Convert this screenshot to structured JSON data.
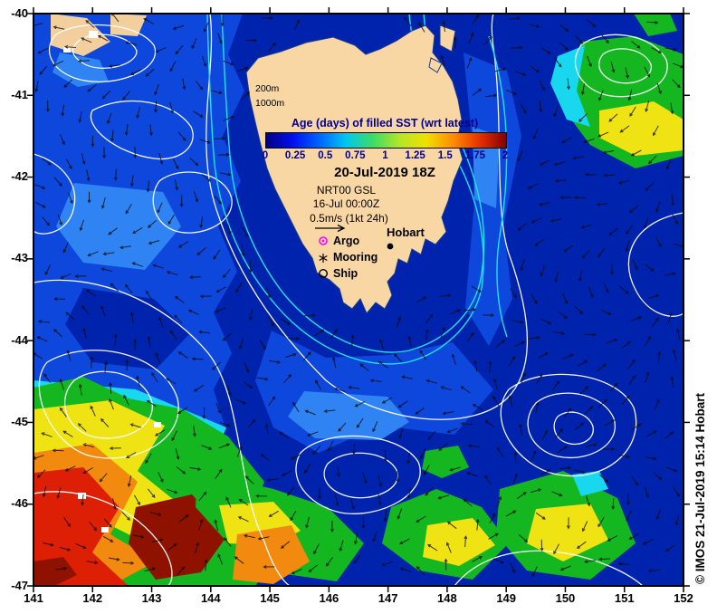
{
  "map": {
    "colorbar": {
      "title": "Age (days) of filled SST (wrt latest)",
      "tick_labels": [
        "0",
        "0.25",
        "0.5",
        "0.75",
        "1",
        "1.25",
        "1.5",
        "1.75",
        "2"
      ],
      "gradient_colors": [
        "#000082",
        "#0010F0",
        "#0064FF",
        "#00C8F0",
        "#3CDC64",
        "#B4E628",
        "#F0E000",
        "#FF8C00",
        "#E63200",
        "#820000"
      ]
    },
    "header": {
      "datetime": "20-Jul-2019 18Z",
      "product": "NRT00 GSL",
      "base_time": "16-Jul 00:00Z",
      "vector_scale_label": "0.5m/s (1kt 24h)"
    },
    "legend": {
      "argo_label": "Argo",
      "mooring_label": "Mooring",
      "ship_label": "Ship"
    },
    "labels": {
      "city": "Hobart",
      "isobath_200": "200m",
      "isobath_1000": "1000m"
    },
    "credit": "© IMOS 21-Jul-2019 15:14 Hobart",
    "colors": {
      "land": "#F9D7A4",
      "ocean_dark": "#0023AD",
      "ocean_medium": "#0D47DC",
      "ocean_light": "#2F83F2",
      "cyan": "#19D7EE",
      "green": "#14B71F",
      "yellow": "#EFE313",
      "orange": "#F28A0F",
      "red": "#DD1F06",
      "dark_red": "#8F1200",
      "bathy_cyan": "#1FE4F0",
      "contour_white": "#FFFFFF",
      "argo_magenta": "#FF00FF"
    }
  },
  "axes": {
    "x_tick_labels": [
      "141",
      "142",
      "143",
      "144",
      "145",
      "146",
      "147",
      "148",
      "149",
      "150",
      "151",
      "152"
    ],
    "y_tick_labels": [
      "-40",
      "-41",
      "-42",
      "-43",
      "-44",
      "-45",
      "-46",
      "-47"
    ]
  }
}
